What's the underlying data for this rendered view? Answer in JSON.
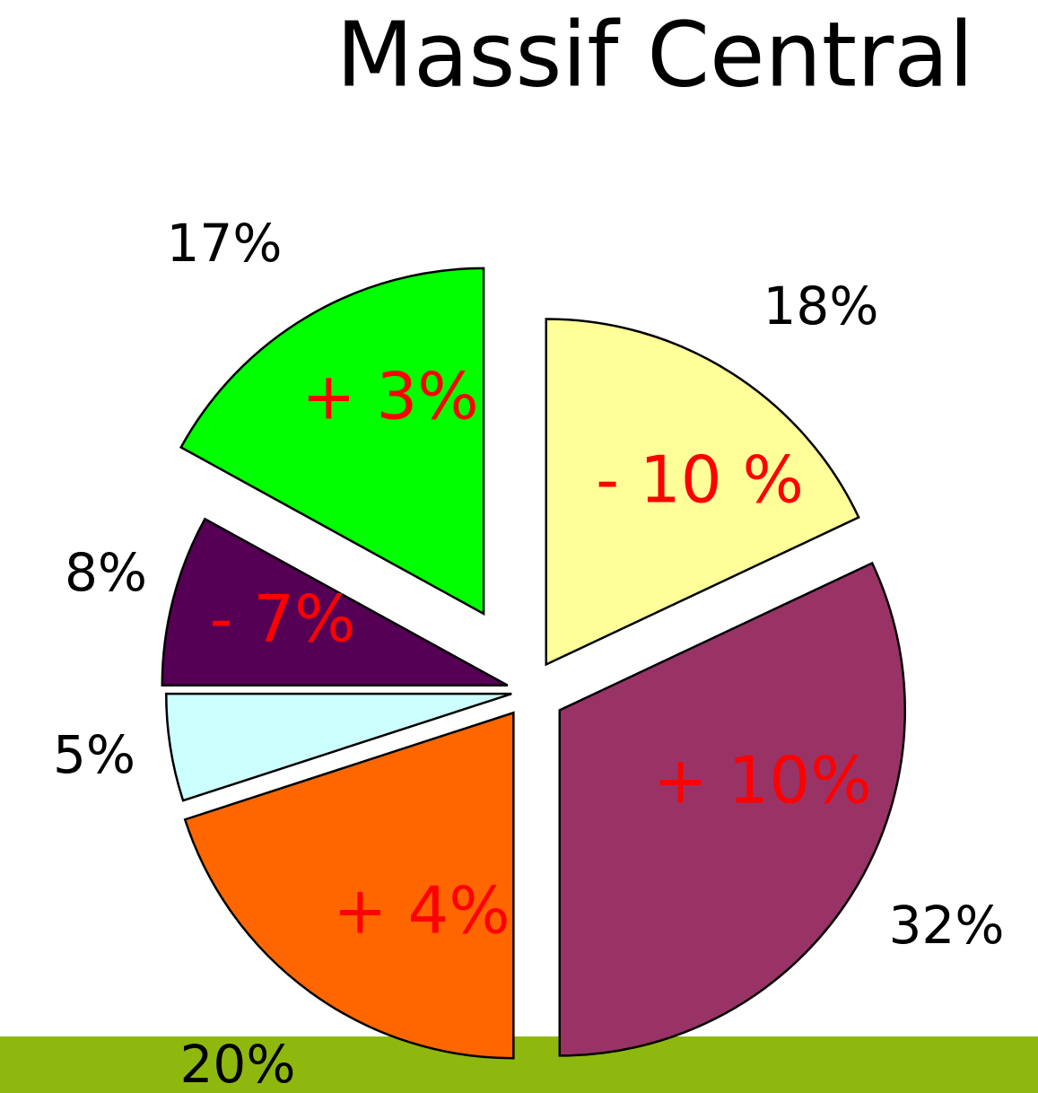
{
  "chart_data": {
    "type": "pie",
    "title": "Massif Central",
    "values": [
      18,
      32,
      20,
      5,
      8,
      17
    ],
    "value_labels": [
      "18%",
      "32%",
      "20%",
      "5%",
      "8%",
      "17%"
    ],
    "changes": [
      "- 10 %",
      "+ 10%",
      "+ 4%",
      null,
      "- 7%",
      "+ 3%"
    ],
    "colors": [
      "#ffff99",
      "#993366",
      "#ff6600",
      "#ccffff",
      "#550055",
      "#00ff00"
    ]
  }
}
